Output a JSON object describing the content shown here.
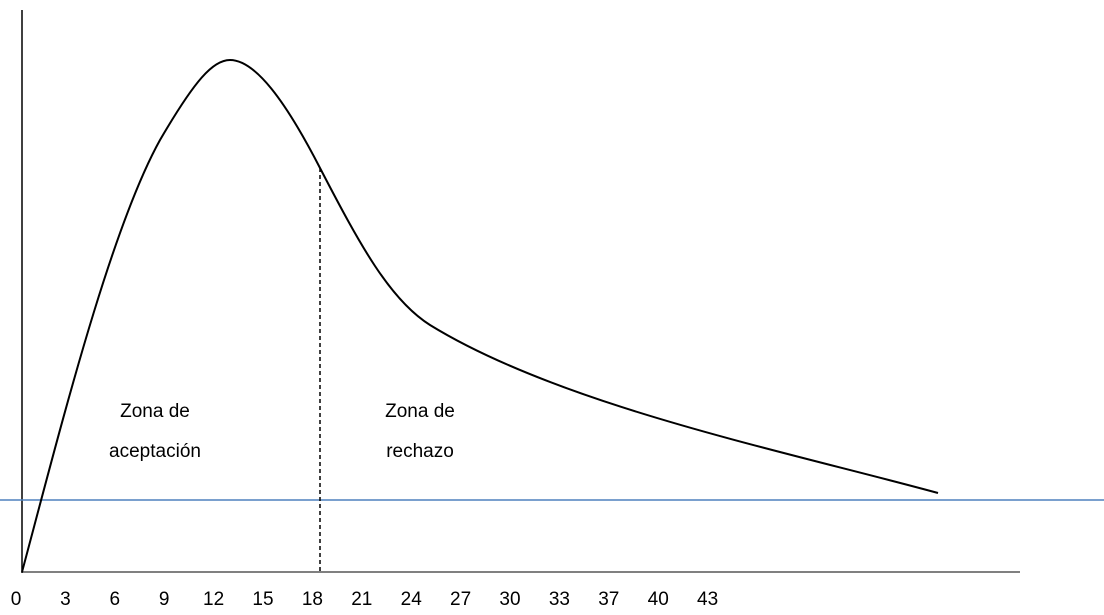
{
  "axis": {
    "labels": [
      "0",
      "3",
      "6",
      "9",
      "12",
      "15",
      "18",
      "21",
      "24",
      "27",
      "30",
      "33",
      "37",
      "40",
      "43"
    ]
  },
  "zones": [
    {
      "lines": [
        "Zona de",
        "aceptación"
      ]
    },
    {
      "lines": [
        "Zona de",
        "rechazo"
      ]
    }
  ]
}
